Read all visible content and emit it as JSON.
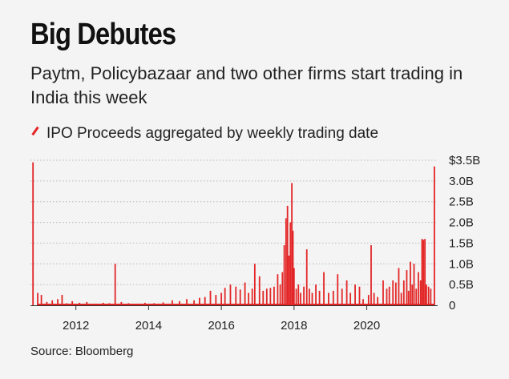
{
  "header": {
    "title": "Big Debutes",
    "subtitle": "Paytm, Policybazaar and two other firms start trading in India this week",
    "legend_label": "IPO Proceeds aggregated by weekly trading date",
    "source": "Source: Bloomberg"
  },
  "colors": {
    "series": "#e32526",
    "grid": "#b8b8b8",
    "background": "#f4f4f4"
  },
  "chart_data": {
    "type": "bar",
    "title": "Big Debutes",
    "subtitle": "Paytm, Policybazaar and two other firms start trading in India this week",
    "series_name": "IPO Proceeds aggregated by weekly trading date",
    "x_ticks": [
      2012,
      2014,
      2016,
      2018,
      2020
    ],
    "y_ticks": [
      {
        "value": 0,
        "label": "0"
      },
      {
        "value": 0.5,
        "label": "0.5B"
      },
      {
        "value": 1.0,
        "label": "1.0B"
      },
      {
        "value": 1.5,
        "label": "1.5B"
      },
      {
        "value": 2.0,
        "label": "2.0B"
      },
      {
        "value": 2.5,
        "label": "2.5B"
      },
      {
        "value": 3.0,
        "label": "3.0B"
      },
      {
        "value": 3.5,
        "label": "$3.5B"
      }
    ],
    "ylim": [
      0,
      3.5
    ],
    "xlim": [
      2010.75,
      2021.95
    ],
    "grid": true,
    "y_axis_side": "right",
    "points": [
      [
        2010.82,
        3.45
      ],
      [
        2010.95,
        0.3
      ],
      [
        2011.05,
        0.25
      ],
      [
        2011.2,
        0.08
      ],
      [
        2011.35,
        0.12
      ],
      [
        2011.5,
        0.15
      ],
      [
        2011.62,
        0.25
      ],
      [
        2011.75,
        0.05
      ],
      [
        2011.9,
        0.1
      ],
      [
        2012.1,
        0.06
      ],
      [
        2012.3,
        0.08
      ],
      [
        2012.55,
        0.04
      ],
      [
        2012.75,
        0.06
      ],
      [
        2012.92,
        0.05
      ],
      [
        2013.08,
        1.0
      ],
      [
        2013.25,
        0.08
      ],
      [
        2013.45,
        0.05
      ],
      [
        2013.7,
        0.04
      ],
      [
        2013.9,
        0.06
      ],
      [
        2014.15,
        0.05
      ],
      [
        2014.4,
        0.07
      ],
      [
        2014.65,
        0.12
      ],
      [
        2014.85,
        0.1
      ],
      [
        2015.05,
        0.15
      ],
      [
        2015.25,
        0.12
      ],
      [
        2015.4,
        0.18
      ],
      [
        2015.55,
        0.2
      ],
      [
        2015.7,
        0.35
      ],
      [
        2015.85,
        0.25
      ],
      [
        2016.0,
        0.3
      ],
      [
        2016.1,
        0.42
      ],
      [
        2016.25,
        0.5
      ],
      [
        2016.4,
        0.45
      ],
      [
        2016.52,
        0.38
      ],
      [
        2016.65,
        0.55
      ],
      [
        2016.75,
        0.3
      ],
      [
        2016.85,
        0.4
      ],
      [
        2016.92,
        1.0
      ],
      [
        2017.05,
        0.7
      ],
      [
        2017.15,
        0.35
      ],
      [
        2017.25,
        0.4
      ],
      [
        2017.35,
        0.42
      ],
      [
        2017.45,
        0.45
      ],
      [
        2017.55,
        0.75
      ],
      [
        2017.62,
        0.5
      ],
      [
        2017.68,
        0.8
      ],
      [
        2017.73,
        1.45
      ],
      [
        2017.78,
        2.1
      ],
      [
        2017.82,
        2.4
      ],
      [
        2017.86,
        1.2
      ],
      [
        2017.9,
        2.0
      ],
      [
        2017.94,
        2.95
      ],
      [
        2017.97,
        1.8
      ],
      [
        2018.0,
        0.9
      ],
      [
        2018.06,
        0.4
      ],
      [
        2018.12,
        0.5
      ],
      [
        2018.18,
        0.3
      ],
      [
        2018.27,
        0.45
      ],
      [
        2018.35,
        1.35
      ],
      [
        2018.42,
        0.4
      ],
      [
        2018.5,
        0.3
      ],
      [
        2018.6,
        0.5
      ],
      [
        2018.7,
        0.35
      ],
      [
        2018.82,
        0.8
      ],
      [
        2018.95,
        0.3
      ],
      [
        2019.08,
        0.35
      ],
      [
        2019.2,
        0.75
      ],
      [
        2019.32,
        0.4
      ],
      [
        2019.45,
        0.6
      ],
      [
        2019.55,
        0.3
      ],
      [
        2019.68,
        0.5
      ],
      [
        2019.8,
        0.45
      ],
      [
        2019.9,
        0.15
      ],
      [
        2020.05,
        0.25
      ],
      [
        2020.12,
        1.45
      ],
      [
        2020.2,
        0.3
      ],
      [
        2020.3,
        0.2
      ],
      [
        2020.45,
        0.6
      ],
      [
        2020.55,
        0.4
      ],
      [
        2020.62,
        0.45
      ],
      [
        2020.72,
        0.6
      ],
      [
        2020.8,
        0.55
      ],
      [
        2020.88,
        0.9
      ],
      [
        2020.95,
        0.3
      ],
      [
        2021.02,
        0.6
      ],
      [
        2021.1,
        0.85
      ],
      [
        2021.15,
        0.35
      ],
      [
        2021.2,
        1.05
      ],
      [
        2021.25,
        0.5
      ],
      [
        2021.3,
        1.0
      ],
      [
        2021.36,
        0.4
      ],
      [
        2021.42,
        0.8
      ],
      [
        2021.48,
        0.6
      ],
      [
        2021.52,
        1.6
      ],
      [
        2021.56,
        1.58
      ],
      [
        2021.6,
        1.6
      ],
      [
        2021.64,
        0.5
      ],
      [
        2021.7,
        0.45
      ],
      [
        2021.76,
        0.4
      ],
      [
        2021.86,
        3.35
      ]
    ]
  }
}
